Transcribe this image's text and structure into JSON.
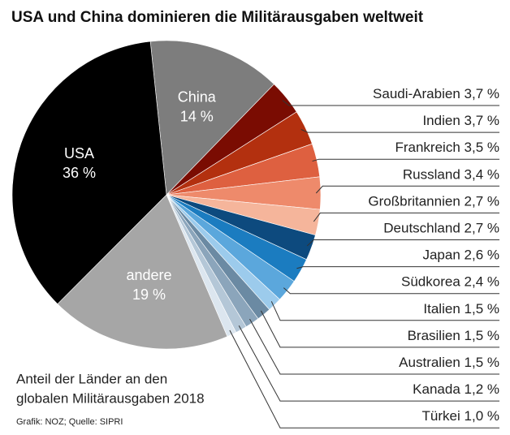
{
  "chart_data": {
    "type": "pie",
    "title": "USA und China dominieren die Militärausgaben weltweit",
    "subtitle": [
      "Anteil der Länder an den",
      "globalen Militärausgaben 2018"
    ],
    "source": "Grafik: NOZ; Quelle: SIPRI",
    "categories": [
      "China",
      "Saudi-Arabien",
      "Indien",
      "Frankreich",
      "Russland",
      "Großbritannien",
      "Deutschland",
      "Japan",
      "Südkorea",
      "Italien",
      "Brasilien",
      "Australien",
      "Kanada",
      "Türkei",
      "andere",
      "USA"
    ],
    "values": [
      14,
      3.7,
      3.7,
      3.5,
      3.4,
      2.7,
      2.7,
      2.6,
      2.4,
      1.5,
      1.5,
      1.5,
      1.2,
      1.0,
      19,
      36
    ],
    "value_labels": [
      "14 %",
      "3,7 %",
      "3,7 %",
      "3,5 %",
      "3,4 %",
      "2,7 %",
      "2,7 %",
      "2,6 %",
      "2,4 %",
      "1,5 %",
      "1,5 %",
      "1,5 %",
      "1,2 %",
      "1,0 %",
      "19 %",
      "36 %"
    ],
    "colors": [
      "#7d7d7d",
      "#7a0c02",
      "#b3300f",
      "#de6040",
      "#ee8a6b",
      "#f5b59b",
      "#0d4a7e",
      "#1b7cc0",
      "#5ba7dc",
      "#9ccbec",
      "#6b8aa3",
      "#8ba5bb",
      "#b4c7d7",
      "#dce6ef",
      "#a6a6a6",
      "#000000"
    ]
  }
}
